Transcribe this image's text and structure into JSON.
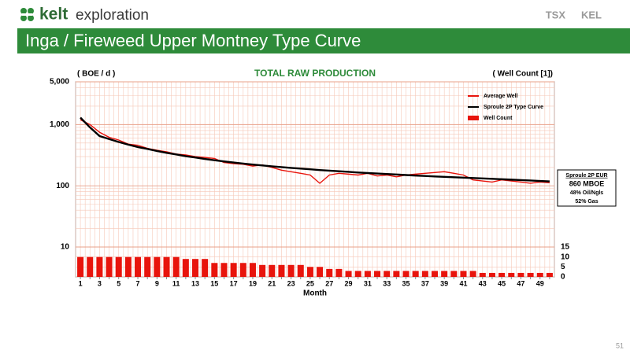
{
  "header": {
    "logo_bold": "kelt",
    "logo_rest": "exploration",
    "ticker_a": "TSX",
    "ticker_b": "KEL",
    "title": "Inga / Fireweed Upper Montney Type Curve",
    "page": "51"
  },
  "chart_data": {
    "type": "line",
    "title": "TOTAL RAW PRODUCTION",
    "y_label": "( BOE / d )",
    "y2_label": "( Well Count [1])",
    "x_label": "Month",
    "categories": [
      1,
      null,
      3,
      null,
      5,
      null,
      7,
      null,
      9,
      null,
      11,
      null,
      13,
      null,
      15,
      null,
      17,
      null,
      19,
      null,
      21,
      null,
      23,
      null,
      25,
      null,
      27,
      null,
      29,
      null,
      31,
      null,
      33,
      null,
      35,
      null,
      37,
      null,
      39,
      null,
      41,
      null,
      43,
      null,
      45,
      null,
      47,
      null,
      49,
      null
    ],
    "log_y": true,
    "grid": true,
    "legend": "top-right",
    "ylim": [
      10,
      5000
    ],
    "yticks": [
      10,
      100,
      {
        "value": 1000,
        "label": "1,000"
      },
      {
        "value": 5000,
        "label": "5,000"
      }
    ],
    "y2lim": [
      0,
      15
    ],
    "y2ticks": [
      0,
      5,
      10,
      15
    ],
    "series": [
      {
        "name": "Average Well",
        "color": "#e8140c",
        "values": [
          1200,
          1000,
          750,
          620,
          560,
          480,
          460,
          410,
          380,
          360,
          330,
          320,
          300,
          290,
          280,
          240,
          230,
          225,
          210,
          220,
          200,
          180,
          170,
          160,
          150,
          110,
          150,
          160,
          155,
          150,
          160,
          145,
          150,
          140,
          150,
          155,
          160,
          165,
          170,
          160,
          150,
          125,
          120,
          115,
          125,
          120,
          115,
          110,
          115,
          112
        ]
      },
      {
        "name": "Sproule 2P Type Curve",
        "color": "#000000",
        "values": [
          1300,
          900,
          650,
          580,
          520,
          470,
          430,
          400,
          370,
          345,
          325,
          305,
          290,
          275,
          262,
          250,
          240,
          231,
          222,
          215,
          208,
          202,
          196,
          191,
          186,
          181,
          177,
          173,
          169,
          165,
          162,
          159,
          156,
          153,
          150,
          147,
          145,
          142,
          140,
          138,
          136,
          134,
          132,
          130,
          128,
          126,
          124,
          122,
          120,
          118
        ]
      },
      {
        "name": "Well Count",
        "type": "bar",
        "axis": "y2",
        "color": "#e8140c",
        "values": [
          10,
          10,
          10,
          10,
          10,
          10,
          10,
          10,
          10,
          10,
          10,
          9,
          9,
          9,
          7,
          7,
          7,
          7,
          7,
          6,
          6,
          6,
          6,
          6,
          5,
          5,
          4,
          4,
          3,
          3,
          3,
          3,
          3,
          3,
          3,
          3,
          3,
          3,
          3,
          3,
          3,
          3,
          2,
          2,
          2,
          2,
          2,
          2,
          2,
          2
        ]
      }
    ],
    "annotations": [
      "Sproule 2P EUR",
      "860 MBOE",
      "48% Oil/Ngls",
      "52% Gas"
    ]
  }
}
